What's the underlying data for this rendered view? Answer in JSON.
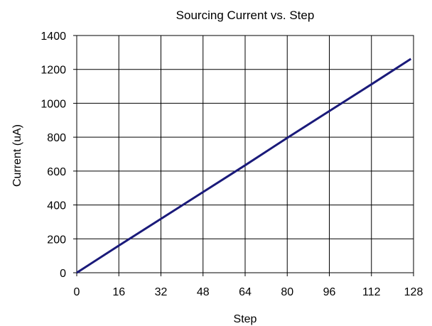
{
  "chart_data": {
    "type": "line",
    "title": "Sourcing Current vs. Step",
    "xlabel": "Step",
    "ylabel": "Current (uA)",
    "xlim": [
      0,
      128
    ],
    "ylim": [
      0,
      1400
    ],
    "xticks": [
      0,
      16,
      32,
      48,
      64,
      80,
      96,
      112,
      128
    ],
    "yticks": [
      0,
      200,
      400,
      600,
      800,
      1000,
      1200,
      1400
    ],
    "grid": true,
    "legend": "none",
    "series": [
      {
        "color": "#1a1a7a",
        "x": [
          0,
          16,
          32,
          48,
          64,
          80,
          96,
          112,
          127
        ],
        "y": [
          0,
          160,
          318,
          476,
          634,
          796,
          954,
          1112,
          1262
        ]
      }
    ]
  }
}
